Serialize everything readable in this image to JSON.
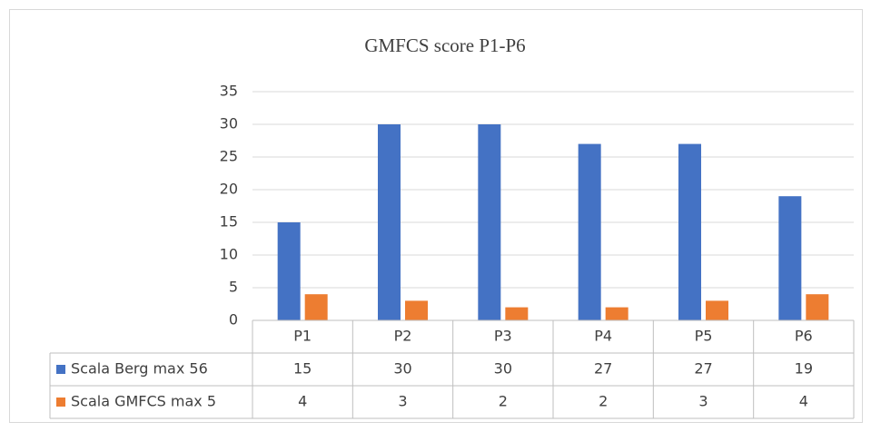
{
  "chart_data": {
    "type": "bar",
    "title": "GMFCS score P1-P6",
    "categories": [
      "P1",
      "P2",
      "P3",
      "P4",
      "P5",
      "P6"
    ],
    "series": [
      {
        "name": "Scala Berg max 56",
        "color": "#4472c4",
        "values": [
          15,
          30,
          30,
          27,
          27,
          19
        ]
      },
      {
        "name": "Scala GMFCS max 5",
        "color": "#ed7d31",
        "values": [
          4,
          3,
          2,
          2,
          3,
          4
        ]
      }
    ],
    "ylim": [
      0,
      35
    ],
    "yticks": [
      0,
      5,
      10,
      15,
      20,
      25,
      30,
      35
    ],
    "grid": true,
    "data_table": true
  }
}
